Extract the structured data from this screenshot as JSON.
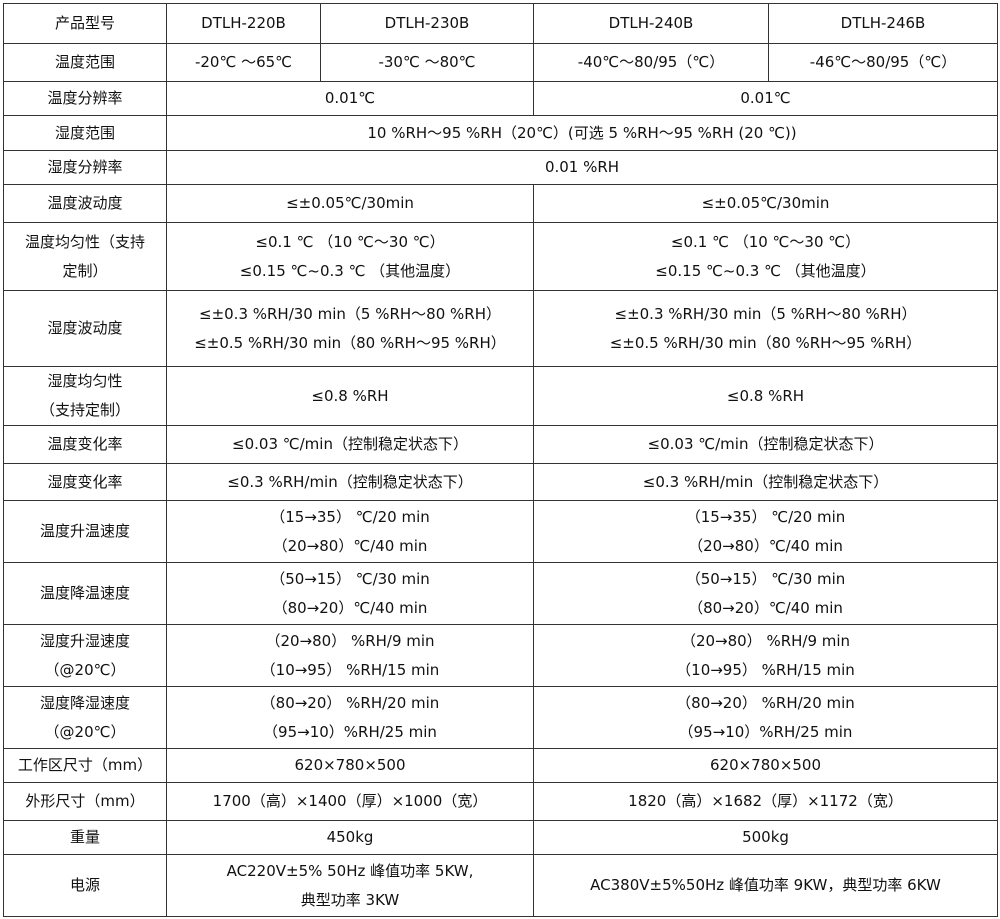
{
  "header": {
    "label": "产品型号",
    "models": [
      "DTLH-220B",
      "DTLH-230B",
      "DTLH-240B",
      "DTLH-246B"
    ]
  },
  "temp_range": {
    "label": "温度范围",
    "values": [
      "-20℃  ～65℃",
      "-30℃  ～80℃",
      "-40℃～80/95（℃）",
      "-46℃～80/95（℃）"
    ]
  },
  "rows": [
    {
      "label": [
        "温度分辨率"
      ],
      "a": [
        "0.01℃"
      ],
      "b": [
        "0.01℃"
      ]
    },
    {
      "label": [
        "湿度范围"
      ],
      "full": [
        "10 %RH～95 %RH（20℃）(可选 5 %RH～95 %RH (20 ℃))"
      ]
    },
    {
      "label": [
        "湿度分辨率"
      ],
      "full": [
        "0.01 %RH"
      ]
    },
    {
      "label": [
        "温度波动度"
      ],
      "a": [
        "≤±0.05℃/30min"
      ],
      "b": [
        "≤±0.05℃/30min"
      ]
    },
    {
      "label": [
        "温度均匀性（支持",
        "定制）"
      ],
      "a": [
        "≤0.1 ℃  （10 ℃～30 ℃）",
        "≤0.15 ℃~0.3 ℃  （其他温度）"
      ],
      "b": [
        "≤0.1 ℃  （10 ℃～30 ℃）",
        "≤0.15 ℃~0.3 ℃  （其他温度）"
      ]
    },
    {
      "label": [
        "湿度波动度"
      ],
      "a": [
        "≤±0.3 %RH/30 min（5 %RH～80 %RH）",
        "≤±0.5 %RH/30 min（80 %RH～95 %RH）"
      ],
      "b": [
        "≤±0.3 %RH/30 min（5 %RH～80 %RH）",
        "≤±0.5 %RH/30 min（80 %RH～95 %RH）"
      ]
    },
    {
      "label": [
        "湿度均匀性",
        "（支持定制）"
      ],
      "a": [
        "≤0.8 %RH"
      ],
      "b": [
        "≤0.8 %RH"
      ]
    },
    {
      "label": [
        "温度变化率"
      ],
      "a": [
        "≤0.03 ℃/min（控制稳定状态下）"
      ],
      "b": [
        "≤0.03 ℃/min（控制稳定状态下）"
      ]
    },
    {
      "label": [
        "湿度变化率"
      ],
      "a": [
        "≤0.3 %RH/min（控制稳定状态下）"
      ],
      "b": [
        "≤0.3 %RH/min（控制稳定状态下）"
      ]
    },
    {
      "label": [
        "温度升温速度"
      ],
      "a": [
        "（15→35）  ℃/20 min",
        "（20→80）℃/40 min"
      ],
      "b": [
        "（15→35）  ℃/20 min",
        "（20→80）℃/40 min"
      ]
    },
    {
      "label": [
        "温度降温速度"
      ],
      "a": [
        "（50→15）  ℃/30 min",
        "（80→20）℃/40 min"
      ],
      "b": [
        "（50→15）  ℃/30 min",
        "（80→20）℃/40 min"
      ]
    },
    {
      "label": [
        "湿度升湿速度",
        "（@20℃）"
      ],
      "a": [
        "（20→80）  %RH/9 min",
        "（10→95）  %RH/15 min"
      ],
      "b": [
        "（20→80）  %RH/9 min",
        "（10→95）  %RH/15 min"
      ]
    },
    {
      "label": [
        "湿度降湿速度",
        "（@20℃）"
      ],
      "a": [
        "（80→20）  %RH/20 min",
        "（95→10）%RH/25 min"
      ],
      "b": [
        "（80→20）  %RH/20 min",
        "（95→10）%RH/25 min"
      ]
    },
    {
      "label": [
        "工作区尺寸（mm）"
      ],
      "a": [
        "620×780×500"
      ],
      "b": [
        "620×780×500"
      ]
    },
    {
      "label": [
        "外形尺寸（mm）"
      ],
      "a": [
        "1700（高）×1400（厚）×1000（宽）"
      ],
      "b": [
        "1820（高）×1682（厚）×1172（宽）"
      ]
    },
    {
      "label": [
        "重量"
      ],
      "a": [
        "450kg"
      ],
      "b": [
        "500kg"
      ]
    },
    {
      "label": [
        "电源"
      ],
      "a": [
        "AC220V±5% 50Hz 峰值功率 5KW,",
        "典型功率 3KW"
      ],
      "b": [
        "AC380V±5%50Hz 峰值功率 9KW，典型功率 6KW"
      ]
    }
  ]
}
